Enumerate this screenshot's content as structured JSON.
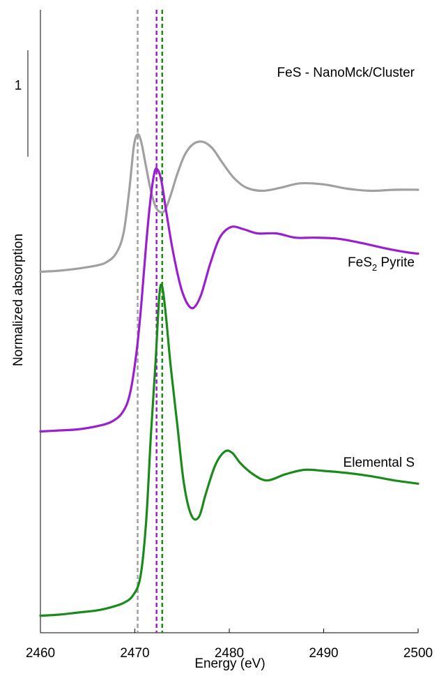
{
  "chart_data": {
    "type": "line",
    "xlabel": "Energy (eV)",
    "ylabel": "Normalized absorption",
    "xlim": [
      2460,
      2500
    ],
    "ylim": [
      -0.15,
      5.7
    ],
    "x_ticks": [
      "2460",
      "2470",
      "2480",
      "2490",
      "2500"
    ],
    "y_ticks_shown": false,
    "grid": false,
    "scale_bar": {
      "label": "1",
      "value": 1,
      "from": 4.32,
      "to": 5.32
    },
    "reference_lines": [
      {
        "x": 2470.3,
        "color": "#a0a0a0"
      },
      {
        "x": 2472.3,
        "color": "#9a1fcf"
      },
      {
        "x": 2472.9,
        "color": "#1a8a1a"
      }
    ],
    "series": [
      {
        "label_main": "FeS - NanoMck/Cluster",
        "label_sub": "",
        "label_after": "",
        "color": "#a0a0a0",
        "x": [
          2460,
          2462,
          2464,
          2466,
          2467,
          2468,
          2468.8,
          2469.4,
          2469.9,
          2470.3,
          2470.7,
          2471.2,
          2471.7,
          2472.2,
          2472.7,
          2473.2,
          2473.8,
          2474.5,
          2475.3,
          2476.2,
          2477.2,
          2478.2,
          2479.3,
          2480.5,
          2481.8,
          2483.5,
          2485.5,
          2487.5,
          2490,
          2492.5,
          2495,
          2497.5,
          2500
        ],
        "y": [
          3.24,
          3.25,
          3.27,
          3.3,
          3.33,
          3.41,
          3.6,
          4.0,
          4.42,
          4.53,
          4.45,
          4.22,
          4.0,
          3.85,
          3.8,
          3.82,
          3.96,
          4.16,
          4.34,
          4.44,
          4.46,
          4.4,
          4.26,
          4.12,
          4.03,
          4.0,
          4.03,
          4.07,
          4.06,
          4.02,
          4.0,
          4.01,
          4.01
        ]
      },
      {
        "label_main": "FeS",
        "label_sub": "2",
        "label_after": " Pyrite",
        "color": "#9a1fcf",
        "x": [
          2460,
          2462,
          2464,
          2466,
          2467.5,
          2468.7,
          2469.5,
          2470.2,
          2470.7,
          2471.2,
          2471.7,
          2472.1,
          2472.4,
          2472.8,
          2473.3,
          2474,
          2474.8,
          2475.5,
          2476.2,
          2477,
          2478,
          2479,
          2480.2,
          2481.5,
          2483,
          2485,
          2487,
          2489,
          2491.5,
          2494,
          2496.5,
          2499,
          2500
        ],
        "y": [
          1.74,
          1.75,
          1.76,
          1.79,
          1.83,
          1.92,
          2.1,
          2.5,
          2.95,
          3.5,
          3.95,
          4.18,
          4.2,
          4.1,
          3.82,
          3.45,
          3.12,
          2.95,
          2.9,
          3.02,
          3.32,
          3.56,
          3.66,
          3.64,
          3.6,
          3.6,
          3.56,
          3.56,
          3.55,
          3.51,
          3.46,
          3.42,
          3.41
        ]
      },
      {
        "label_main": "Elemental S",
        "label_sub": "",
        "label_after": "",
        "color": "#1a8a1a",
        "x": [
          2460,
          2462,
          2464,
          2466,
          2467.5,
          2468.8,
          2469.8,
          2470.6,
          2471.2,
          2471.7,
          2472.2,
          2472.6,
          2472.9,
          2473.3,
          2473.8,
          2474.5,
          2475.2,
          2476,
          2476.8,
          2477.5,
          2478.5,
          2479.5,
          2480.3,
          2481.2,
          2482.5,
          2484,
          2486,
          2488,
          2490,
          2492.5,
          2495,
          2497.5,
          2500
        ],
        "y": [
          0.01,
          0.02,
          0.04,
          0.06,
          0.09,
          0.13,
          0.2,
          0.38,
          0.9,
          1.7,
          2.4,
          3.02,
          3.1,
          2.82,
          2.35,
          1.8,
          1.25,
          0.95,
          0.94,
          1.15,
          1.42,
          1.55,
          1.54,
          1.44,
          1.34,
          1.28,
          1.34,
          1.38,
          1.37,
          1.35,
          1.32,
          1.28,
          1.25
        ]
      }
    ]
  }
}
